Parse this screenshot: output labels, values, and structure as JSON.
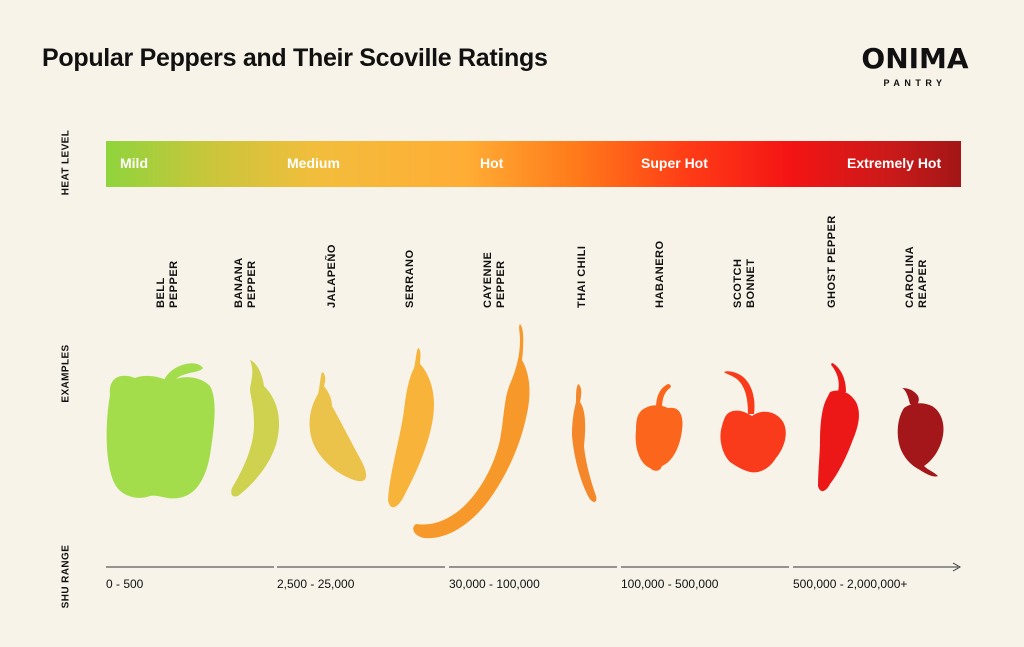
{
  "title": "Popular Peppers and Their Scoville Ratings",
  "logo": {
    "name": "ONIMA",
    "sub": "PANTRY"
  },
  "side_labels": {
    "heat_level": "HEAT LEVEL",
    "examples": "EXAMPLES",
    "shu_range": "SHU RANGE"
  },
  "heat_levels": [
    "Mild",
    "Medium",
    "Hot",
    "Super Hot",
    "Extremely Hot"
  ],
  "peppers": [
    {
      "name": "BELL PEPPER",
      "color": "#a3dd4b"
    },
    {
      "name": "BANANA\nPEPPER",
      "color": "#cfd24e"
    },
    {
      "name": "JALAPEÑO",
      "color": "#ecc34a"
    },
    {
      "name": "SERRANO",
      "color": "#f8b33b"
    },
    {
      "name": "CAYENNE\nPEPPER",
      "color": "#f7992a"
    },
    {
      "name": "THAI CHILI",
      "color": "#f5872b"
    },
    {
      "name": "HABANERO",
      "color": "#fb651c"
    },
    {
      "name": "SCOTCH\nBONNET",
      "color": "#f93b1c"
    },
    {
      "name": "GHOST PEPPER",
      "color": "#ec1717"
    },
    {
      "name": "CAROLINA\nREAPER",
      "color": "#a3161a"
    }
  ],
  "shu_ranges": [
    "0 - 500",
    "2,500 - 25,000",
    "30,000 - 100,000",
    "100,000 - 500,000",
    "500,000 - 2,000,000+"
  ]
}
